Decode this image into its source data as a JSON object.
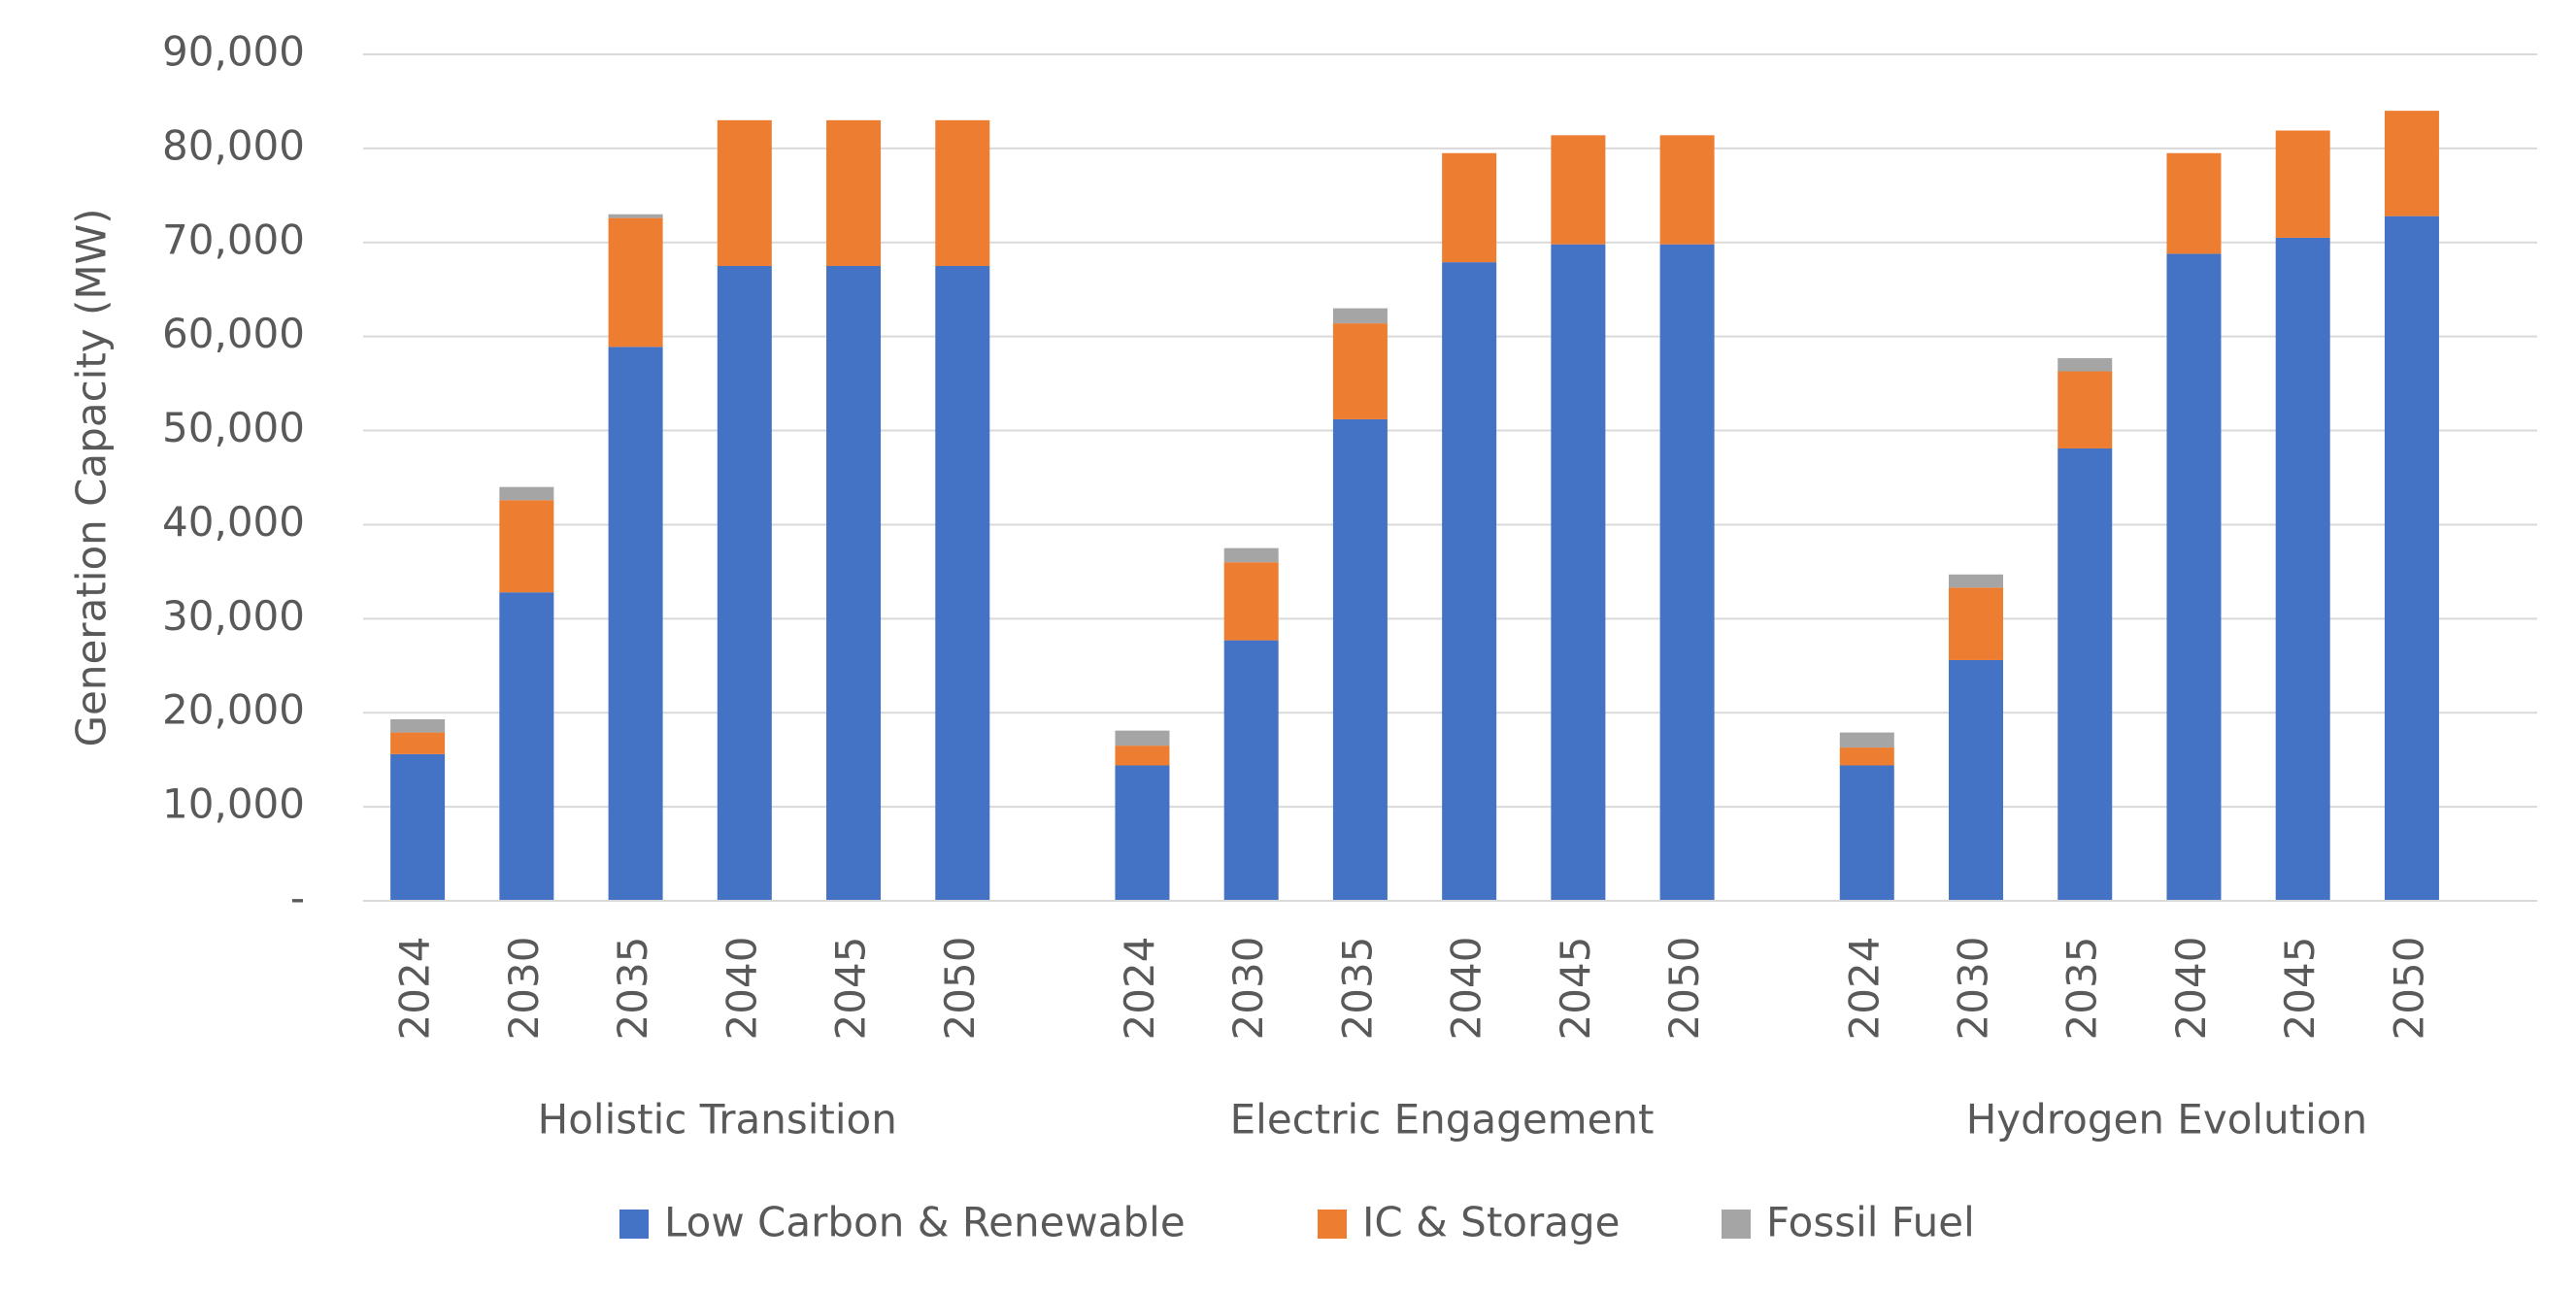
{
  "chart_data": {
    "type": "stacked_bar",
    "y_axis_label": "Generation Capacity (MW)",
    "groups": [
      {
        "name": "Holistic Transition",
        "categories": [
          "2024",
          "2030",
          "2035",
          "2040",
          "2045",
          "2050"
        ]
      },
      {
        "name": "Electric Engagement",
        "categories": [
          "2024",
          "2030",
          "2035",
          "2040",
          "2045",
          "2050"
        ]
      },
      {
        "name": "Hydrogen Evolution",
        "categories": [
          "2024",
          "2030",
          "2035",
          "2040",
          "2045",
          "2050"
        ]
      }
    ],
    "series": [
      {
        "name": "Low Carbon & Renewable",
        "color": "#4472c4",
        "values": [
          [
            15600,
            32800,
            58900,
            67500,
            67500,
            67500
          ],
          [
            14400,
            27700,
            51200,
            67900,
            69800,
            69800
          ],
          [
            14400,
            25600,
            48100,
            68800,
            70500,
            72800
          ]
        ]
      },
      {
        "name": "IC & Storage",
        "color": "#ed7d31",
        "values": [
          [
            2300,
            9800,
            13700,
            15500,
            15500,
            15500
          ],
          [
            2100,
            8300,
            10200,
            11600,
            11600,
            11600
          ],
          [
            1900,
            7700,
            8200,
            10700,
            11400,
            11200
          ]
        ]
      },
      {
        "name": "Fossil Fuel",
        "color": "#a5a5a5",
        "values": [
          [
            1400,
            1400,
            400,
            0,
            0,
            0
          ],
          [
            1600,
            1500,
            1600,
            0,
            0,
            0
          ],
          [
            1600,
            1400,
            1400,
            0,
            0,
            0
          ]
        ]
      }
    ],
    "ylim": [
      0,
      90000
    ],
    "yticks": [
      {
        "value": 0,
        "label": "-"
      },
      {
        "value": 10000,
        "label": "10,000"
      },
      {
        "value": 20000,
        "label": "20,000"
      },
      {
        "value": 30000,
        "label": "30,000"
      },
      {
        "value": 40000,
        "label": "40,000"
      },
      {
        "value": 50000,
        "label": "50,000"
      },
      {
        "value": 60000,
        "label": "60,000"
      },
      {
        "value": 70000,
        "label": "70,000"
      },
      {
        "value": 80000,
        "label": "80,000"
      },
      {
        "value": 90000,
        "label": "90,000"
      }
    ],
    "grid": true,
    "legend": "bottom"
  }
}
